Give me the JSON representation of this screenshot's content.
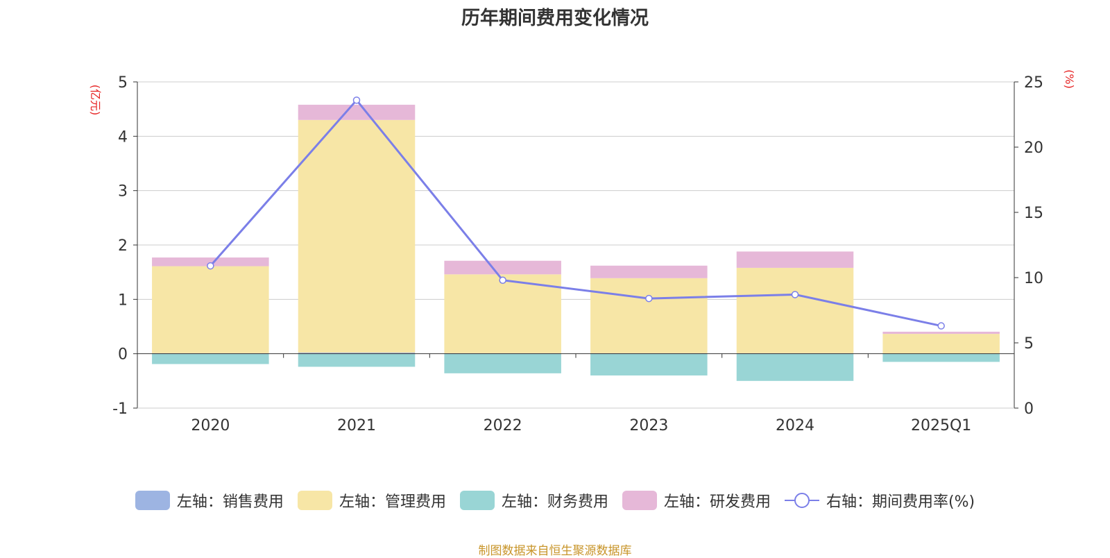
{
  "chart_data": {
    "type": "bar",
    "title": "历年期间费用变化情况",
    "categories": [
      "2020",
      "2021",
      "2022",
      "2023",
      "2024",
      "2025Q1"
    ],
    "left_axis": {
      "unit_label": "(亿元)",
      "ylim": [
        -1,
        5
      ],
      "ticks": [
        -1,
        0,
        1,
        2,
        3,
        4,
        5
      ]
    },
    "right_axis": {
      "unit_label": "(%)",
      "ylim": [
        0,
        25
      ],
      "ticks": [
        0,
        5,
        10,
        15,
        20,
        25
      ]
    },
    "series": [
      {
        "name": "左轴：销售费用",
        "axis": "left",
        "color": "#9db4e2",
        "values": [
          0.01,
          0.02,
          0.01,
          0.01,
          0.01,
          0.005
        ]
      },
      {
        "name": "左轴：管理费用",
        "axis": "left",
        "color": "#f7e6a6",
        "values": [
          1.6,
          4.28,
          1.45,
          1.38,
          1.57,
          0.36
        ]
      },
      {
        "name": "左轴：财务费用",
        "axis": "left",
        "color": "#99d5d5",
        "values": [
          -0.19,
          -0.24,
          -0.36,
          -0.4,
          -0.5,
          -0.15
        ]
      },
      {
        "name": "左轴：研发费用",
        "axis": "left",
        "color": "#e6b8d8",
        "values": [
          0.16,
          0.28,
          0.25,
          0.23,
          0.3,
          0.04
        ]
      },
      {
        "name": "右轴：期间费用率(%)",
        "axis": "right",
        "type": "line",
        "color": "#7b7fe8",
        "values": [
          10.9,
          23.6,
          9.8,
          8.4,
          8.7,
          6.3
        ]
      }
    ],
    "grid": true
  },
  "source_note": "制图数据来自恒生聚源数据库"
}
